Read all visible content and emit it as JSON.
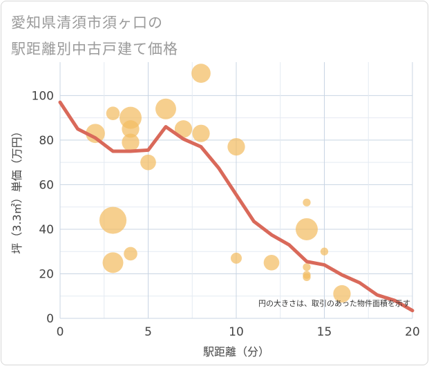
{
  "chart_data": {
    "type": "scatter+line",
    "title_lines": [
      "愛知県清須市須ヶ口の",
      "駅距離別中古戸建て価格"
    ],
    "xlabel": "駅距離（分）",
    "ylabel": "坪（3.3㎡）単価（万円）",
    "xlim": [
      0,
      20
    ],
    "ylim": [
      0,
      115
    ],
    "xticks": [
      0,
      5,
      10,
      15,
      20
    ],
    "yticks": [
      0,
      20,
      40,
      60,
      80,
      100
    ],
    "grid": true,
    "note": "円の大きさは、取引のあった物件面積を示す",
    "colors": {
      "line": "#d9695a",
      "bubble": "#f3bd63",
      "grid": "#c8d4e3",
      "background": "#ffffff"
    },
    "line_series": {
      "x": [
        0,
        1,
        2,
        3,
        4,
        5,
        6,
        7,
        8,
        9,
        10,
        11,
        12,
        13,
        14,
        15,
        16,
        17,
        18,
        19,
        20
      ],
      "y": [
        97,
        85,
        81,
        75,
        75,
        75.5,
        86,
        80.5,
        77,
        67.5,
        55.5,
        43.5,
        37.5,
        33,
        25.5,
        24,
        19.5,
        16,
        10.5,
        8,
        3.5
      ]
    },
    "bubbles": [
      {
        "x": 2,
        "y": 83,
        "size": 3
      },
      {
        "x": 3,
        "y": 92,
        "size": 1.5
      },
      {
        "x": 3,
        "y": 44,
        "size": 6
      },
      {
        "x": 3,
        "y": 25,
        "size": 3.5
      },
      {
        "x": 4,
        "y": 90,
        "size": 4
      },
      {
        "x": 4,
        "y": 85,
        "size": 2.5
      },
      {
        "x": 4,
        "y": 79,
        "size": 2.5
      },
      {
        "x": 4,
        "y": 29,
        "size": 1.5
      },
      {
        "x": 5,
        "y": 70,
        "size": 2
      },
      {
        "x": 6,
        "y": 94,
        "size": 3.5
      },
      {
        "x": 7,
        "y": 85,
        "size": 2.5
      },
      {
        "x": 8,
        "y": 110,
        "size": 3
      },
      {
        "x": 8,
        "y": 83,
        "size": 2.5
      },
      {
        "x": 10,
        "y": 77,
        "size": 2.5
      },
      {
        "x": 10,
        "y": 27,
        "size": 1
      },
      {
        "x": 12,
        "y": 25,
        "size": 2
      },
      {
        "x": 14,
        "y": 52,
        "size": 0.5
      },
      {
        "x": 14,
        "y": 40,
        "size": 4
      },
      {
        "x": 14,
        "y": 23,
        "size": 0.5
      },
      {
        "x": 14,
        "y": 19.5,
        "size": 0.5
      },
      {
        "x": 14,
        "y": 18.5,
        "size": 0.5
      },
      {
        "x": 15,
        "y": 30,
        "size": 0.5
      },
      {
        "x": 16,
        "y": 11,
        "size": 2.5
      }
    ]
  }
}
